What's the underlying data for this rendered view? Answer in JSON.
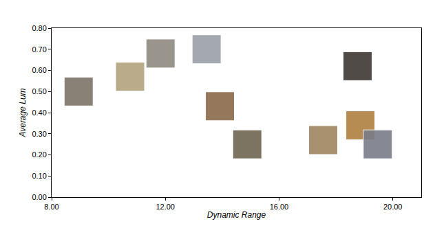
{
  "chart_data": {
    "type": "scatter",
    "x_label": "Dynamic Range",
    "y_label": "Average Lum",
    "x": [
      8.95,
      10.76,
      11.83,
      13.45,
      13.92,
      14.88,
      17.55,
      18.86,
      19.47,
      18.76
    ],
    "values": [
      0.5,
      0.57,
      0.68,
      0.7,
      0.43,
      0.25,
      0.27,
      0.34,
      0.25,
      0.62
    ],
    "colors": [
      "#7d7468",
      "#b3a27e",
      "#8f8a80",
      "#9aa0a6",
      "#8a6a4a",
      "#6e6450",
      "#a08660",
      "#b08040",
      "#7a7c88",
      "#3e3832"
    ],
    "marker": "square",
    "xlim": [
      8,
      21
    ],
    "xticks": [
      {
        "value": 8,
        "label": "8.00"
      },
      {
        "value": 12,
        "label": "12.00"
      },
      {
        "value": 16,
        "label": "16.00"
      },
      {
        "value": 20,
        "label": "20.00"
      }
    ],
    "ylim": [
      0,
      0.8
    ],
    "yticks": [
      {
        "value": 0,
        "label": "0.00"
      },
      {
        "value": 0.1,
        "label": "0.10"
      },
      {
        "value": 0.2,
        "label": "0.20"
      },
      {
        "value": 0.3,
        "label": "0.30"
      },
      {
        "value": 0.4,
        "label": "0.40"
      },
      {
        "value": 0.5,
        "label": "0.50"
      },
      {
        "value": 0.6,
        "label": "0.60"
      },
      {
        "value": 0.7,
        "label": "0.70"
      },
      {
        "value": 0.8,
        "label": "0.80"
      }
    ],
    "grid": false
  }
}
